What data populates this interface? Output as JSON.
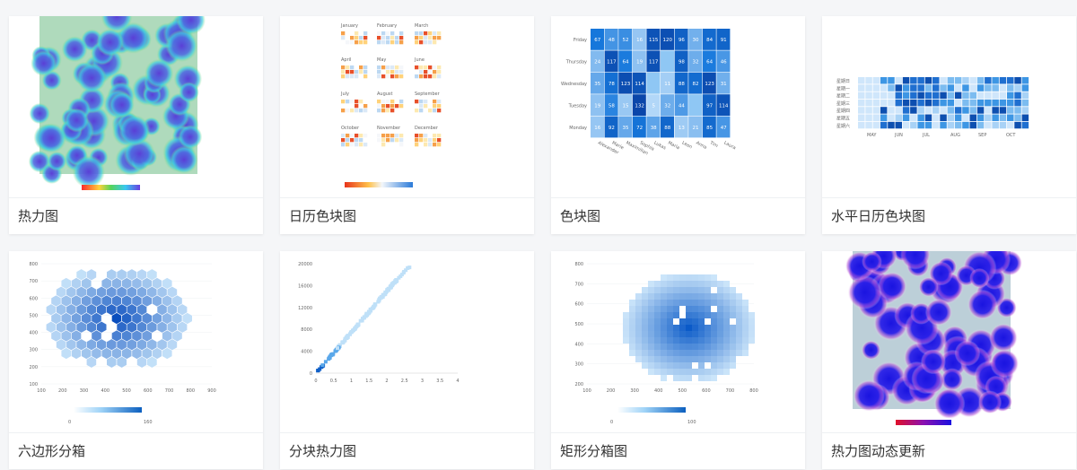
{
  "cards": [
    {
      "title": "热力图"
    },
    {
      "title": "日历色块图"
    },
    {
      "title": "色块图"
    },
    {
      "title": "水平日历色块图"
    },
    {
      "title": "六边形分箱"
    },
    {
      "title": "分块热力图"
    },
    {
      "title": "矩形分箱图"
    },
    {
      "title": "热力图动态更新"
    }
  ],
  "thumbs": {
    "calendar": {
      "months": [
        "January",
        "February",
        "March",
        "April",
        "May",
        "June",
        "July",
        "August",
        "September",
        "October",
        "November",
        "December"
      ]
    },
    "heatmap": {
      "y_labels": [
        "Friday",
        "Thursday",
        "Wednesday",
        "Tuesday",
        "Monday"
      ],
      "x_labels": [
        "Alexander",
        "Marie",
        "Maximilian",
        "Sophia",
        "Lukas",
        "Maria",
        "Leon",
        "Anna",
        "Tim",
        "Laura"
      ],
      "values": [
        [
          67,
          48,
          52,
          16,
          115,
          120,
          96,
          30,
          84,
          91
        ],
        [
          24,
          117,
          64,
          19,
          117,
          "",
          "98",
          32,
          64,
          46
        ],
        [
          35,
          78,
          123,
          114,
          "",
          11,
          88,
          82,
          123,
          31
        ],
        [
          19,
          58,
          15,
          132,
          5,
          32,
          44,
          "",
          97,
          114
        ],
        [
          16,
          92,
          35,
          72,
          38,
          88,
          13,
          21,
          85,
          47
        ]
      ]
    },
    "hcalendar": {
      "rows": [
        "星期日",
        "星期一",
        "星期二",
        "星期三",
        "星期四",
        "星期五",
        "星期六"
      ],
      "months": [
        "MAY",
        "JUN",
        "JUL",
        "AUG",
        "SEP",
        "OCT"
      ]
    },
    "hexbin": {
      "y_ticks": [
        "800",
        "700",
        "600",
        "500",
        "400",
        "300",
        "200",
        "100"
      ],
      "x_ticks": [
        "100",
        "200",
        "300",
        "400",
        "500",
        "600",
        "700",
        "800",
        "900"
      ],
      "legend_min": "0",
      "legend_max": "160"
    },
    "blockheat": {
      "y_ticks": [
        "20000",
        "16000",
        "12000",
        "8000",
        "4000",
        "0"
      ],
      "x_ticks": [
        "0",
        "0.5",
        "1",
        "1.5",
        "2",
        "2.5",
        "3",
        "3.5",
        "4"
      ]
    },
    "rectbin": {
      "y_ticks": [
        "800",
        "700",
        "600",
        "500",
        "400",
        "300",
        "200"
      ],
      "x_ticks": [
        "100",
        "200",
        "300",
        "400",
        "500",
        "600",
        "700",
        "800"
      ],
      "legend_min": "0",
      "legend_max": "100"
    }
  },
  "colors": {
    "accent_blue": "#1a78d6",
    "heat_rainbow": [
      "#0000ff",
      "#00ffff",
      "#00ff00",
      "#ffff00",
      "#ff0000"
    ]
  }
}
